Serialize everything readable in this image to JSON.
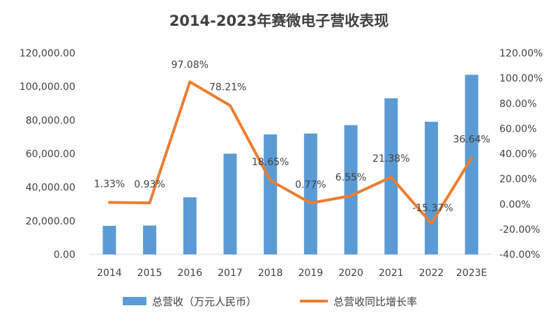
{
  "chart_data": {
    "type": "bar",
    "title": "2014-2023年赛微电子营收表现",
    "categories": [
      "2014",
      "2015",
      "2016",
      "2017",
      "2018",
      "2019",
      "2020",
      "2021",
      "2022",
      "2023E"
    ],
    "series": [
      {
        "name": "总营收（万元人民币）",
        "type": "bar",
        "axis": "left",
        "color": "#5b9bd5",
        "values": [
          17000,
          17200,
          34000,
          60000,
          71500,
          72000,
          77000,
          93000,
          79000,
          107000
        ]
      },
      {
        "name": "总营收同比增长率",
        "type": "line",
        "axis": "right",
        "color": "#ed7d31",
        "values": [
          1.33,
          0.93,
          97.08,
          78.21,
          18.65,
          0.77,
          6.55,
          21.38,
          -15.37,
          36.64
        ],
        "labels": [
          "1.33%",
          "0.93%",
          "97.08%",
          "78.21%",
          "18.65%",
          "0.77%",
          "6.55%",
          "21.38%",
          "-15.37%",
          "36.64%"
        ]
      }
    ],
    "y_left": {
      "min": 0,
      "max": 120000,
      "ticks": [
        "0.00",
        "20,000.00",
        "40,000.00",
        "60,000.00",
        "80,000.00",
        "100,000.00",
        "120,000.00"
      ]
    },
    "y_right": {
      "min": -40,
      "max": 120,
      "ticks": [
        "-40.00%",
        "-20.00%",
        "0.00%",
        "20.00%",
        "40.00%",
        "60.00%",
        "80.00%",
        "100.00%",
        "120.00%"
      ]
    },
    "grid": false,
    "legend_position": "bottom"
  }
}
